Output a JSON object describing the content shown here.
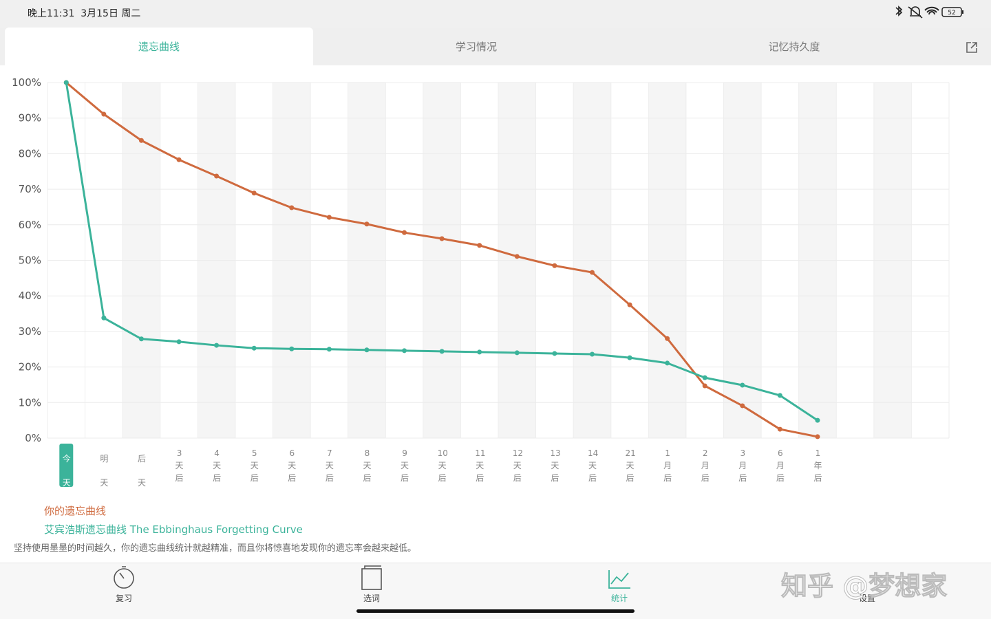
{
  "status_bar": {
    "time": "晚上11:31  3月15日 周二",
    "battery": "52"
  },
  "tabs": [
    "遗忘曲线",
    "学习情况",
    "记忆持久度"
  ],
  "chart_data": {
    "type": "line",
    "categories": [
      "今天",
      "明天",
      "后天",
      "3天后",
      "4天后",
      "5天后",
      "6天后",
      "7天后",
      "8天后",
      "9天后",
      "10天后",
      "11天后",
      "12天后",
      "13天后",
      "14天后",
      "21天后",
      "1月后",
      "2月后",
      "3月后",
      "6月后",
      "1年后",
      null,
      null,
      null
    ],
    "series": [
      {
        "name": "你的遗忘曲线",
        "color": "#cf6a3e",
        "values": [
          100,
          91.1,
          83.7,
          78.3,
          73.7,
          68.9,
          64.8,
          62.1,
          60.2,
          57.8,
          56.1,
          54.2,
          51.1,
          48.5,
          46.6,
          37.5,
          28.0,
          14.7,
          9.1,
          2.5,
          0.4,
          null,
          null,
          null
        ]
      },
      {
        "name": "艾宾浩斯遗忘曲线 The Ebbinghaus Forgetting Curve",
        "color": "#3bb39a",
        "values": [
          100,
          33.8,
          27.9,
          27.1,
          26.1,
          25.3,
          25.1,
          25.0,
          24.8,
          24.6,
          24.4,
          24.2,
          24.0,
          23.8,
          23.6,
          22.6,
          21.1,
          17.0,
          14.9,
          12.0,
          5.0,
          null,
          null,
          null
        ]
      }
    ],
    "ylim": [
      0,
      100
    ],
    "yticks": [
      {
        "value": 0,
        "label": "0%"
      },
      {
        "value": 10,
        "label": "10%"
      },
      {
        "value": 20,
        "label": "20%"
      },
      {
        "value": 30,
        "label": "30%"
      },
      {
        "value": 40,
        "label": "40%"
      },
      {
        "value": 50,
        "label": "50%"
      },
      {
        "value": 60,
        "label": "60%"
      },
      {
        "value": 70,
        "label": "70%"
      },
      {
        "value": 80,
        "label": "80%"
      },
      {
        "value": 90,
        "label": "90%"
      },
      {
        "value": 100,
        "label": "100%"
      }
    ],
    "grid": true
  },
  "note": "坚持使用墨墨的时间越久，你的遗忘曲线统计就越精准，而且你将惊喜地发现你的遗忘率会越来越低。",
  "nav": [
    "复习",
    "选词",
    "统计",
    "设置"
  ],
  "watermark": "知乎 @梦想家"
}
